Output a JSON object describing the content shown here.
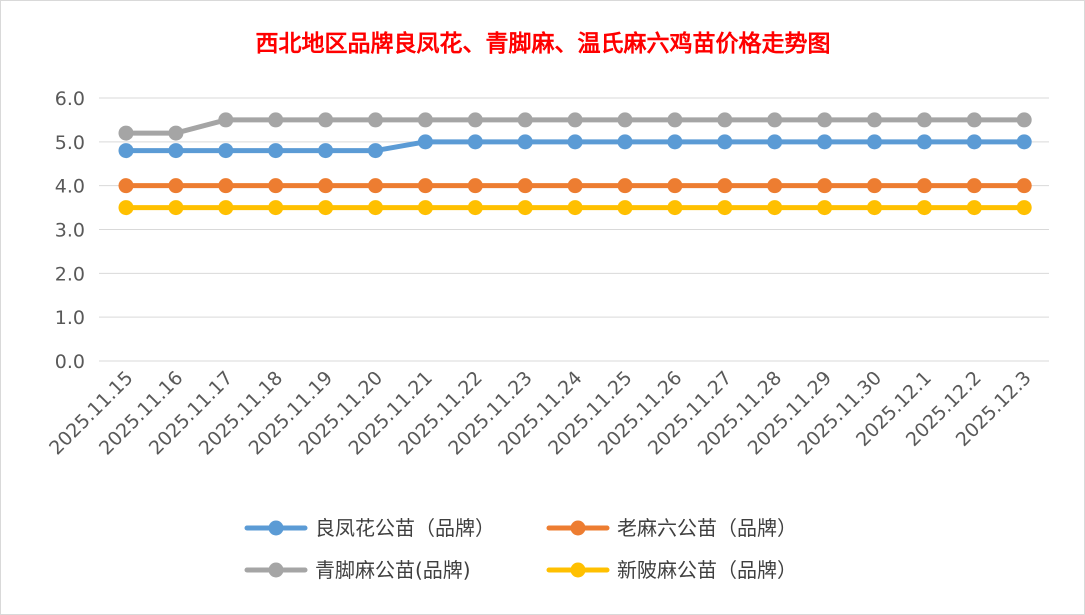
{
  "chart_data": {
    "type": "line",
    "title": "西北地区品牌良凤花、青脚麻、温氏麻六鸡苗价格走势图",
    "xlabel": "",
    "ylabel": "",
    "ylim": [
      0,
      6
    ],
    "yticks": [
      "0.0",
      "1.0",
      "2.0",
      "3.0",
      "4.0",
      "5.0",
      "6.0"
    ],
    "grid": true,
    "legend_position": "bottom",
    "categories": [
      "2025.11.15",
      "2025.11.16",
      "2025.11.17",
      "2025.11.18",
      "2025.11.19",
      "2025.11.20",
      "2025.11.21",
      "2025.11.22",
      "2025.11.23",
      "2025.11.24",
      "2025.11.25",
      "2025.11.26",
      "2025.11.27",
      "2025.11.28",
      "2025.11.29",
      "2025.11.30",
      "2025.12.1",
      "2025.12.2",
      "2025.12.3"
    ],
    "series": [
      {
        "name": "良凤花公苗（品牌）",
        "color": "#5b9bd5",
        "values": [
          4.8,
          4.8,
          4.8,
          4.8,
          4.8,
          4.8,
          5.0,
          5.0,
          5.0,
          5.0,
          5.0,
          5.0,
          5.0,
          5.0,
          5.0,
          5.0,
          5.0,
          5.0,
          5.0
        ]
      },
      {
        "name": "老麻六公苗（品牌）",
        "color": "#ed7d31",
        "values": [
          4.0,
          4.0,
          4.0,
          4.0,
          4.0,
          4.0,
          4.0,
          4.0,
          4.0,
          4.0,
          4.0,
          4.0,
          4.0,
          4.0,
          4.0,
          4.0,
          4.0,
          4.0,
          4.0
        ]
      },
      {
        "name": "青脚麻公苗(品牌)",
        "color": "#a5a5a5",
        "values": [
          5.2,
          5.2,
          5.5,
          5.5,
          5.5,
          5.5,
          5.5,
          5.5,
          5.5,
          5.5,
          5.5,
          5.5,
          5.5,
          5.5,
          5.5,
          5.5,
          5.5,
          5.5,
          5.5
        ]
      },
      {
        "name": "新陂麻公苗（品牌）",
        "color": "#ffc000",
        "values": [
          3.5,
          3.5,
          3.5,
          3.5,
          3.5,
          3.5,
          3.5,
          3.5,
          3.5,
          3.5,
          3.5,
          3.5,
          3.5,
          3.5,
          3.5,
          3.5,
          3.5,
          3.5,
          3.5
        ]
      }
    ]
  }
}
